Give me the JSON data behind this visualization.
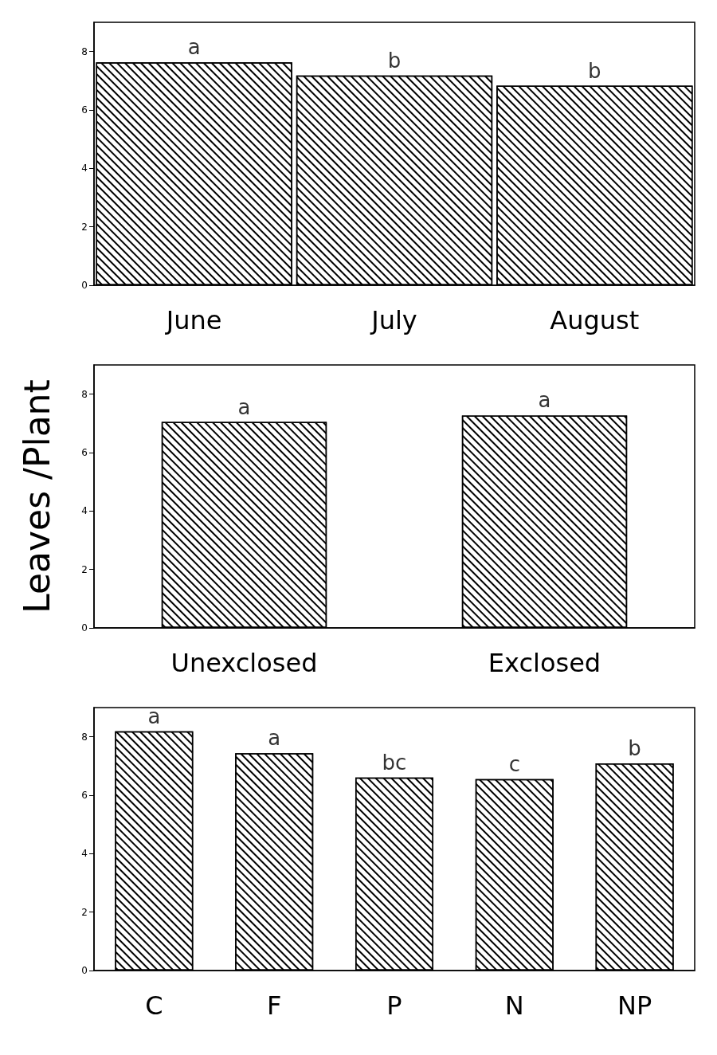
{
  "chart_data": [
    {
      "type": "bar",
      "categories": [
        "June",
        "July",
        "August"
      ],
      "values": [
        7.63,
        7.18,
        6.83
      ],
      "color": "#ffffff",
      "ylim": [
        0,
        9
      ],
      "yticks": [
        0,
        2,
        4,
        6,
        8
      ],
      "grid": false,
      "annotations": [
        {
          "text": "a",
          "x": "June",
          "y": 7.63
        },
        {
          "text": "b",
          "x": "July",
          "y": 7.18
        },
        {
          "text": "b",
          "x": "August",
          "y": 6.83
        }
      ]
    },
    {
      "type": "bar",
      "ylabel": "Leaves /Plant",
      "categories": [
        "Unexclosed",
        "Exclosed"
      ],
      "values": [
        7.05,
        7.27
      ],
      "color": "#ffffff",
      "ylim": [
        0,
        9
      ],
      "yticks": [
        0,
        2,
        4,
        6,
        8
      ],
      "grid": false,
      "annotations": [
        {
          "text": "a",
          "x": "Unexclosed",
          "y": 7.05
        },
        {
          "text": "a",
          "x": "Exclosed",
          "y": 7.27
        }
      ]
    },
    {
      "type": "bar",
      "categories": [
        "C",
        "F",
        "P",
        "N",
        "NP"
      ],
      "values": [
        8.19,
        7.44,
        6.61,
        6.55,
        7.09
      ],
      "color": "#ffffff",
      "ylim": [
        0,
        9
      ],
      "yticks": [
        0,
        2,
        4,
        6,
        8
      ],
      "grid": false,
      "annotations": [
        {
          "text": "a",
          "x": "C",
          "y": 8.19
        },
        {
          "text": "a",
          "x": "F",
          "y": 7.44
        },
        {
          "text": "bc",
          "x": "P",
          "y": 6.61
        },
        {
          "text": "c",
          "x": "N",
          "y": 6.55
        },
        {
          "text": "b",
          "x": "NP",
          "y": 7.09
        }
      ]
    }
  ]
}
